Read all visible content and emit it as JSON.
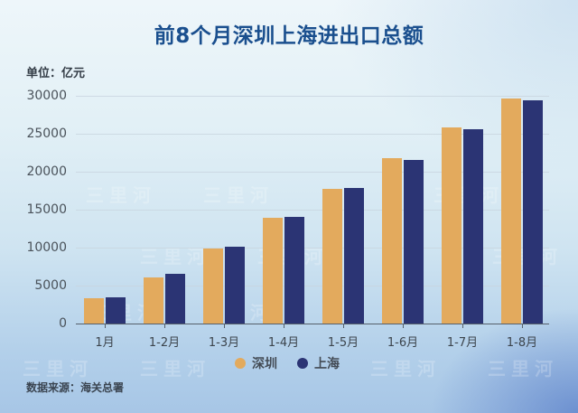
{
  "title": "前8个月深圳上海进出口总额",
  "unit_label": "单位：亿元",
  "source_label": "数据来源：海关总署",
  "watermark": "三里河",
  "colors": {
    "shenzhen": "#e3aa5d",
    "shanghai": "#2b3474",
    "title": "#1a4f8e"
  },
  "legend": [
    {
      "label": "深圳",
      "color": "#e3aa5d"
    },
    {
      "label": "上海",
      "color": "#2b3474"
    }
  ],
  "y_ticks": [
    "0",
    "5000",
    "10000",
    "15000",
    "20000",
    "25000",
    "30000"
  ],
  "chart_data": {
    "type": "bar",
    "title": "前8个月深圳上海进出口总额",
    "xlabel": "",
    "ylabel": "单位：亿元",
    "categories": [
      "1月",
      "1-2月",
      "1-3月",
      "1-4月",
      "1-5月",
      "1-6月",
      "1-7月",
      "1-8月"
    ],
    "series": [
      {
        "name": "深圳",
        "color": "#e3aa5d",
        "values": [
          3330,
          6030,
          9900,
          13960,
          17780,
          21750,
          25870,
          29680
        ]
      },
      {
        "name": "上海",
        "color": "#2b3474",
        "values": [
          3400,
          6500,
          10080,
          14080,
          17900,
          21590,
          25550,
          29400
        ]
      }
    ],
    "ylim": [
      0,
      30000
    ],
    "y_ticks": [
      0,
      5000,
      10000,
      15000,
      20000,
      25000,
      30000
    ],
    "grid": true,
    "legend_position": "bottom",
    "source": "数据来源：海关总署"
  }
}
